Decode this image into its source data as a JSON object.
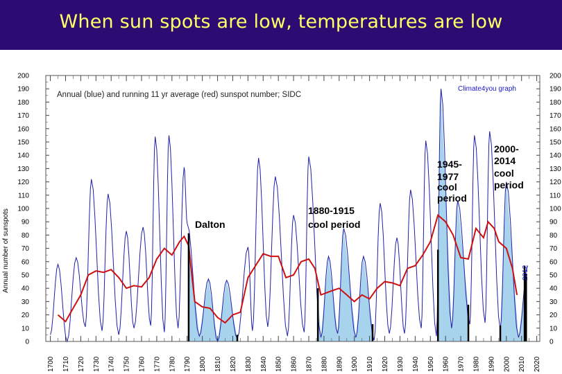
{
  "slide": {
    "title": "When sun spots are low, temperatures are low",
    "colors": {
      "header_bg": "#2c0b72",
      "title_text": "#ffff66"
    }
  },
  "chart_data": {
    "type": "line",
    "title": "Annual (blue) and running 11 yr average (red) sunspot number; SIDC",
    "credit": "Climate4you graph",
    "ylabel": "Annual number of sunspots",
    "xlabel": "",
    "xlim": [
      1697,
      2022
    ],
    "ylim": [
      0,
      200
    ],
    "yticks": [
      0,
      10,
      20,
      30,
      40,
      50,
      60,
      70,
      80,
      90,
      100,
      110,
      120,
      130,
      140,
      150,
      160,
      170,
      180,
      190,
      200
    ],
    "xticks": [
      1700,
      1710,
      1720,
      1730,
      1740,
      1750,
      1760,
      1770,
      1780,
      1790,
      1800,
      1810,
      1820,
      1830,
      1840,
      1850,
      1860,
      1870,
      1880,
      1890,
      1900,
      1910,
      1920,
      1930,
      1940,
      1950,
      1960,
      1970,
      1980,
      1990,
      2000,
      2010,
      2020
    ],
    "series": [
      {
        "name": "Annual sunspot number",
        "color": "#1f1fa8",
        "points": [
          [
            1700,
            5
          ],
          [
            1705,
            58
          ],
          [
            1711,
            0
          ],
          [
            1717,
            63
          ],
          [
            1723,
            11
          ],
          [
            1727,
            122
          ],
          [
            1734,
            8
          ],
          [
            1738,
            111
          ],
          [
            1745,
            5
          ],
          [
            1750,
            83
          ],
          [
            1755,
            10
          ],
          [
            1761,
            86
          ],
          [
            1766,
            12
          ],
          [
            1769,
            154
          ],
          [
            1775,
            7
          ],
          [
            1778,
            155
          ],
          [
            1784,
            10
          ],
          [
            1788,
            131
          ],
          [
            1790,
            89
          ],
          [
            1798,
            4
          ],
          [
            1804,
            47
          ],
          [
            1810,
            0
          ],
          [
            1816,
            46
          ],
          [
            1823,
            2
          ],
          [
            1830,
            71
          ],
          [
            1833,
            8
          ],
          [
            1837,
            138
          ],
          [
            1843,
            11
          ],
          [
            1848,
            124
          ],
          [
            1856,
            4
          ],
          [
            1860,
            95
          ],
          [
            1867,
            7
          ],
          [
            1870,
            139
          ],
          [
            1878,
            3
          ],
          [
            1883,
            64
          ],
          [
            1889,
            6
          ],
          [
            1893,
            85
          ],
          [
            1901,
            3
          ],
          [
            1906,
            64
          ],
          [
            1913,
            1
          ],
          [
            1917,
            104
          ],
          [
            1923,
            6
          ],
          [
            1928,
            78
          ],
          [
            1933,
            6
          ],
          [
            1937,
            114
          ],
          [
            1944,
            10
          ],
          [
            1947,
            151
          ],
          [
            1954,
            4
          ],
          [
            1957,
            190
          ],
          [
            1964,
            10
          ],
          [
            1968,
            106
          ],
          [
            1976,
            13
          ],
          [
            1979,
            155
          ],
          [
            1986,
            14
          ],
          [
            1989,
            158
          ],
          [
            1996,
            9
          ],
          [
            2000,
            120
          ],
          [
            2008,
            3
          ],
          [
            2014,
            57
          ]
        ]
      },
      {
        "name": "Running 11 yr average",
        "color": "#cc1010",
        "points": [
          [
            1705,
            20
          ],
          [
            1710,
            15
          ],
          [
            1715,
            25
          ],
          [
            1720,
            35
          ],
          [
            1725,
            50
          ],
          [
            1730,
            53
          ],
          [
            1735,
            52
          ],
          [
            1740,
            54
          ],
          [
            1745,
            48
          ],
          [
            1750,
            40
          ],
          [
            1755,
            42
          ],
          [
            1760,
            41
          ],
          [
            1765,
            48
          ],
          [
            1770,
            62
          ],
          [
            1775,
            70
          ],
          [
            1780,
            65
          ],
          [
            1785,
            75
          ],
          [
            1788,
            79
          ],
          [
            1791,
            72
          ],
          [
            1795,
            30
          ],
          [
            1800,
            26
          ],
          [
            1805,
            25
          ],
          [
            1810,
            18
          ],
          [
            1815,
            14
          ],
          [
            1820,
            20
          ],
          [
            1825,
            22
          ],
          [
            1830,
            48
          ],
          [
            1835,
            57
          ],
          [
            1840,
            66
          ],
          [
            1845,
            64
          ],
          [
            1850,
            64
          ],
          [
            1855,
            48
          ],
          [
            1860,
            50
          ],
          [
            1865,
            60
          ],
          [
            1870,
            62
          ],
          [
            1874,
            55
          ],
          [
            1878,
            35
          ],
          [
            1885,
            38
          ],
          [
            1890,
            40
          ],
          [
            1895,
            35
          ],
          [
            1900,
            30
          ],
          [
            1905,
            35
          ],
          [
            1910,
            32
          ],
          [
            1915,
            40
          ],
          [
            1920,
            45
          ],
          [
            1925,
            44
          ],
          [
            1930,
            42
          ],
          [
            1935,
            55
          ],
          [
            1940,
            57
          ],
          [
            1945,
            65
          ],
          [
            1950,
            75
          ],
          [
            1955,
            95
          ],
          [
            1960,
            90
          ],
          [
            1965,
            80
          ],
          [
            1970,
            63
          ],
          [
            1975,
            62
          ],
          [
            1980,
            85
          ],
          [
            1985,
            78
          ],
          [
            1988,
            90
          ],
          [
            1992,
            85
          ],
          [
            1995,
            75
          ],
          [
            2000,
            70
          ],
          [
            2004,
            55
          ],
          [
            2007,
            35
          ]
        ]
      }
    ],
    "shaded_periods": [
      {
        "name": "Dalton",
        "start": 1791,
        "end": 1823
      },
      {
        "name": "1880-1915 cool period",
        "start": 1876,
        "end": 1912
      },
      {
        "name": "1945-1977 cool period",
        "start": 1955,
        "end": 1975
      },
      {
        "name": "2000-2014 cool period",
        "start": 1996,
        "end": 2013
      }
    ],
    "annotations": {
      "dalton": "Dalton",
      "p1880_l1": "1880-1915",
      "p1880_l2": "cool period",
      "p1945_l1": "1945-",
      "p1945_l2": "1977",
      "p1945_l3": "cool",
      "p1945_l4": "period",
      "p2000_l1": "2000-",
      "p2000_l2": "2014",
      "p2000_l3": "cool",
      "p2000_l4": "period",
      "year_marker": "2012"
    },
    "colors": {
      "shade": "#a7d3ec",
      "marker_bars": "#000000"
    }
  }
}
